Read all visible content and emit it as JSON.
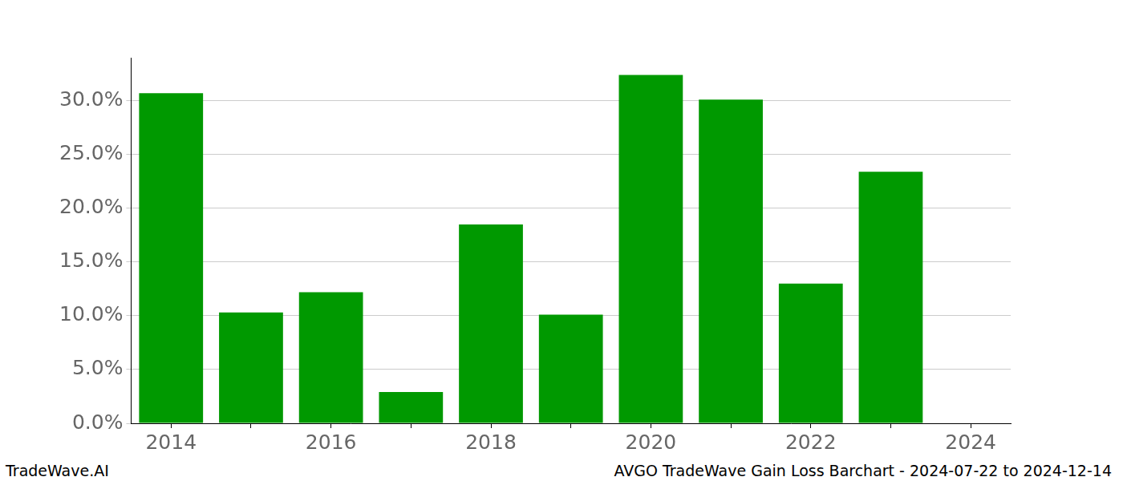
{
  "chart_data": {
    "type": "bar",
    "categories": [
      "2014",
      null,
      "2016",
      null,
      "2018",
      null,
      "2020",
      null,
      "2022",
      null,
      "2024"
    ],
    "values": [
      30.7,
      10.3,
      12.2,
      2.9,
      18.5,
      10.1,
      32.4,
      30.1,
      13.0,
      23.4,
      null
    ],
    "color": "#009900",
    "ylim": [
      0,
      34
    ],
    "yticks": [
      {
        "value": 0,
        "label": "0.0%"
      },
      {
        "value": 5,
        "label": "5.0%"
      },
      {
        "value": 10,
        "label": "10.0%"
      },
      {
        "value": 15,
        "label": "15.0%"
      },
      {
        "value": 20,
        "label": "20.0%"
      },
      {
        "value": 25,
        "label": "25.0%"
      },
      {
        "value": 30,
        "label": "30.0%"
      }
    ],
    "grid": true,
    "annotations": [
      "TradeWave.AI",
      "AVGO TradeWave Gain Loss Barchart - 2024-07-22 to 2024-12-14"
    ]
  }
}
